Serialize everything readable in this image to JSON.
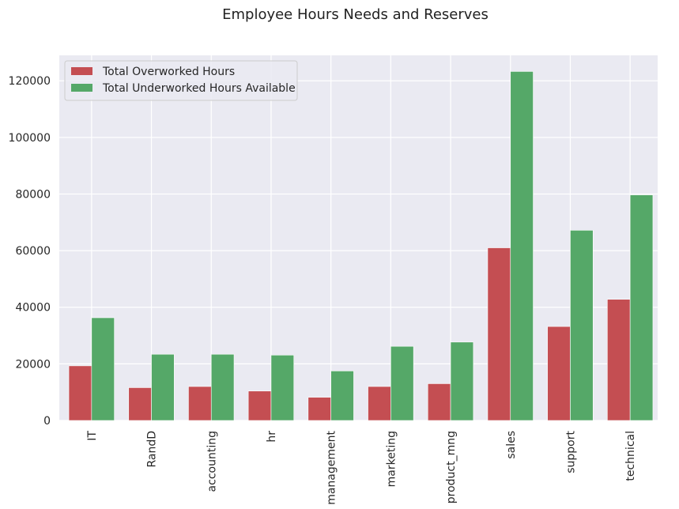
{
  "chart_data": {
    "type": "bar",
    "title": "Employee Hours Needs and Reserves",
    "xlabel": "",
    "ylabel": "",
    "categories": [
      "IT",
      "RandD",
      "accounting",
      "hr",
      "management",
      "marketing",
      "product_mng",
      "sales",
      "support",
      "technical"
    ],
    "series": [
      {
        "name": "Total Overworked Hours",
        "color": "#c44e52",
        "values": [
          19300,
          11600,
          12000,
          10400,
          8200,
          12000,
          13000,
          61000,
          33200,
          42800
        ]
      },
      {
        "name": "Total Underworked Hours Available",
        "color": "#55a868",
        "values": [
          36300,
          23400,
          23400,
          23100,
          17500,
          26200,
          27700,
          123300,
          67200,
          79700
        ]
      }
    ],
    "ylim": [
      0,
      129000
    ],
    "yticks": [
      0,
      20000,
      40000,
      60000,
      80000,
      100000,
      120000
    ],
    "ytick_labels": [
      "0",
      "20000",
      "40000",
      "60000",
      "80000",
      "100000",
      "120000"
    ],
    "grid": true,
    "legend_position": "top-left",
    "background_color": "#eaeaf2",
    "grid_color": "#ffffff"
  }
}
